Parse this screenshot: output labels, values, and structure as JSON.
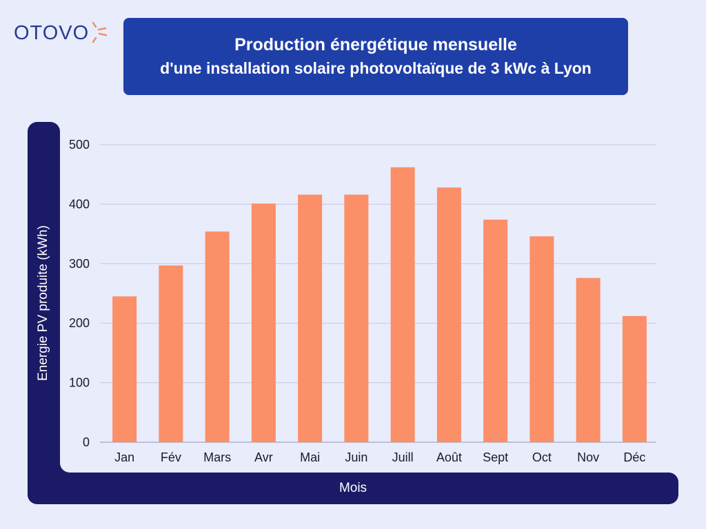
{
  "brand": {
    "name": "OTOVO",
    "logo_color": "#243c8f",
    "sun_color": "#f08a5d"
  },
  "title": {
    "line1": "Production énergétique mensuelle",
    "line2": "d'une installation solaire photovoltaïque de 3 kWc à Lyon"
  },
  "colors": {
    "bar": "#fb8f67",
    "frame": "#1b1a66",
    "title_bg": "#1f3fa8",
    "background": "#e9ecfb"
  },
  "chart_data": {
    "type": "bar",
    "title": "Production énergétique mensuelle d'une installation solaire photovoltaïque de 3 kWc à Lyon",
    "xlabel": "Mois",
    "ylabel": "Energie PV produite (kWh)",
    "categories": [
      "Jan",
      "Fév",
      "Mars",
      "Avr",
      "Mai",
      "Juin",
      "Juill",
      "Août",
      "Sept",
      "Oct",
      "Nov",
      "Déc"
    ],
    "values": [
      245,
      297,
      354,
      401,
      416,
      416,
      462,
      428,
      374,
      346,
      276,
      212
    ],
    "ylim": [
      0,
      500
    ],
    "yticks": [
      0,
      100,
      200,
      300,
      400,
      500
    ],
    "grid": true,
    "legend": "none"
  }
}
